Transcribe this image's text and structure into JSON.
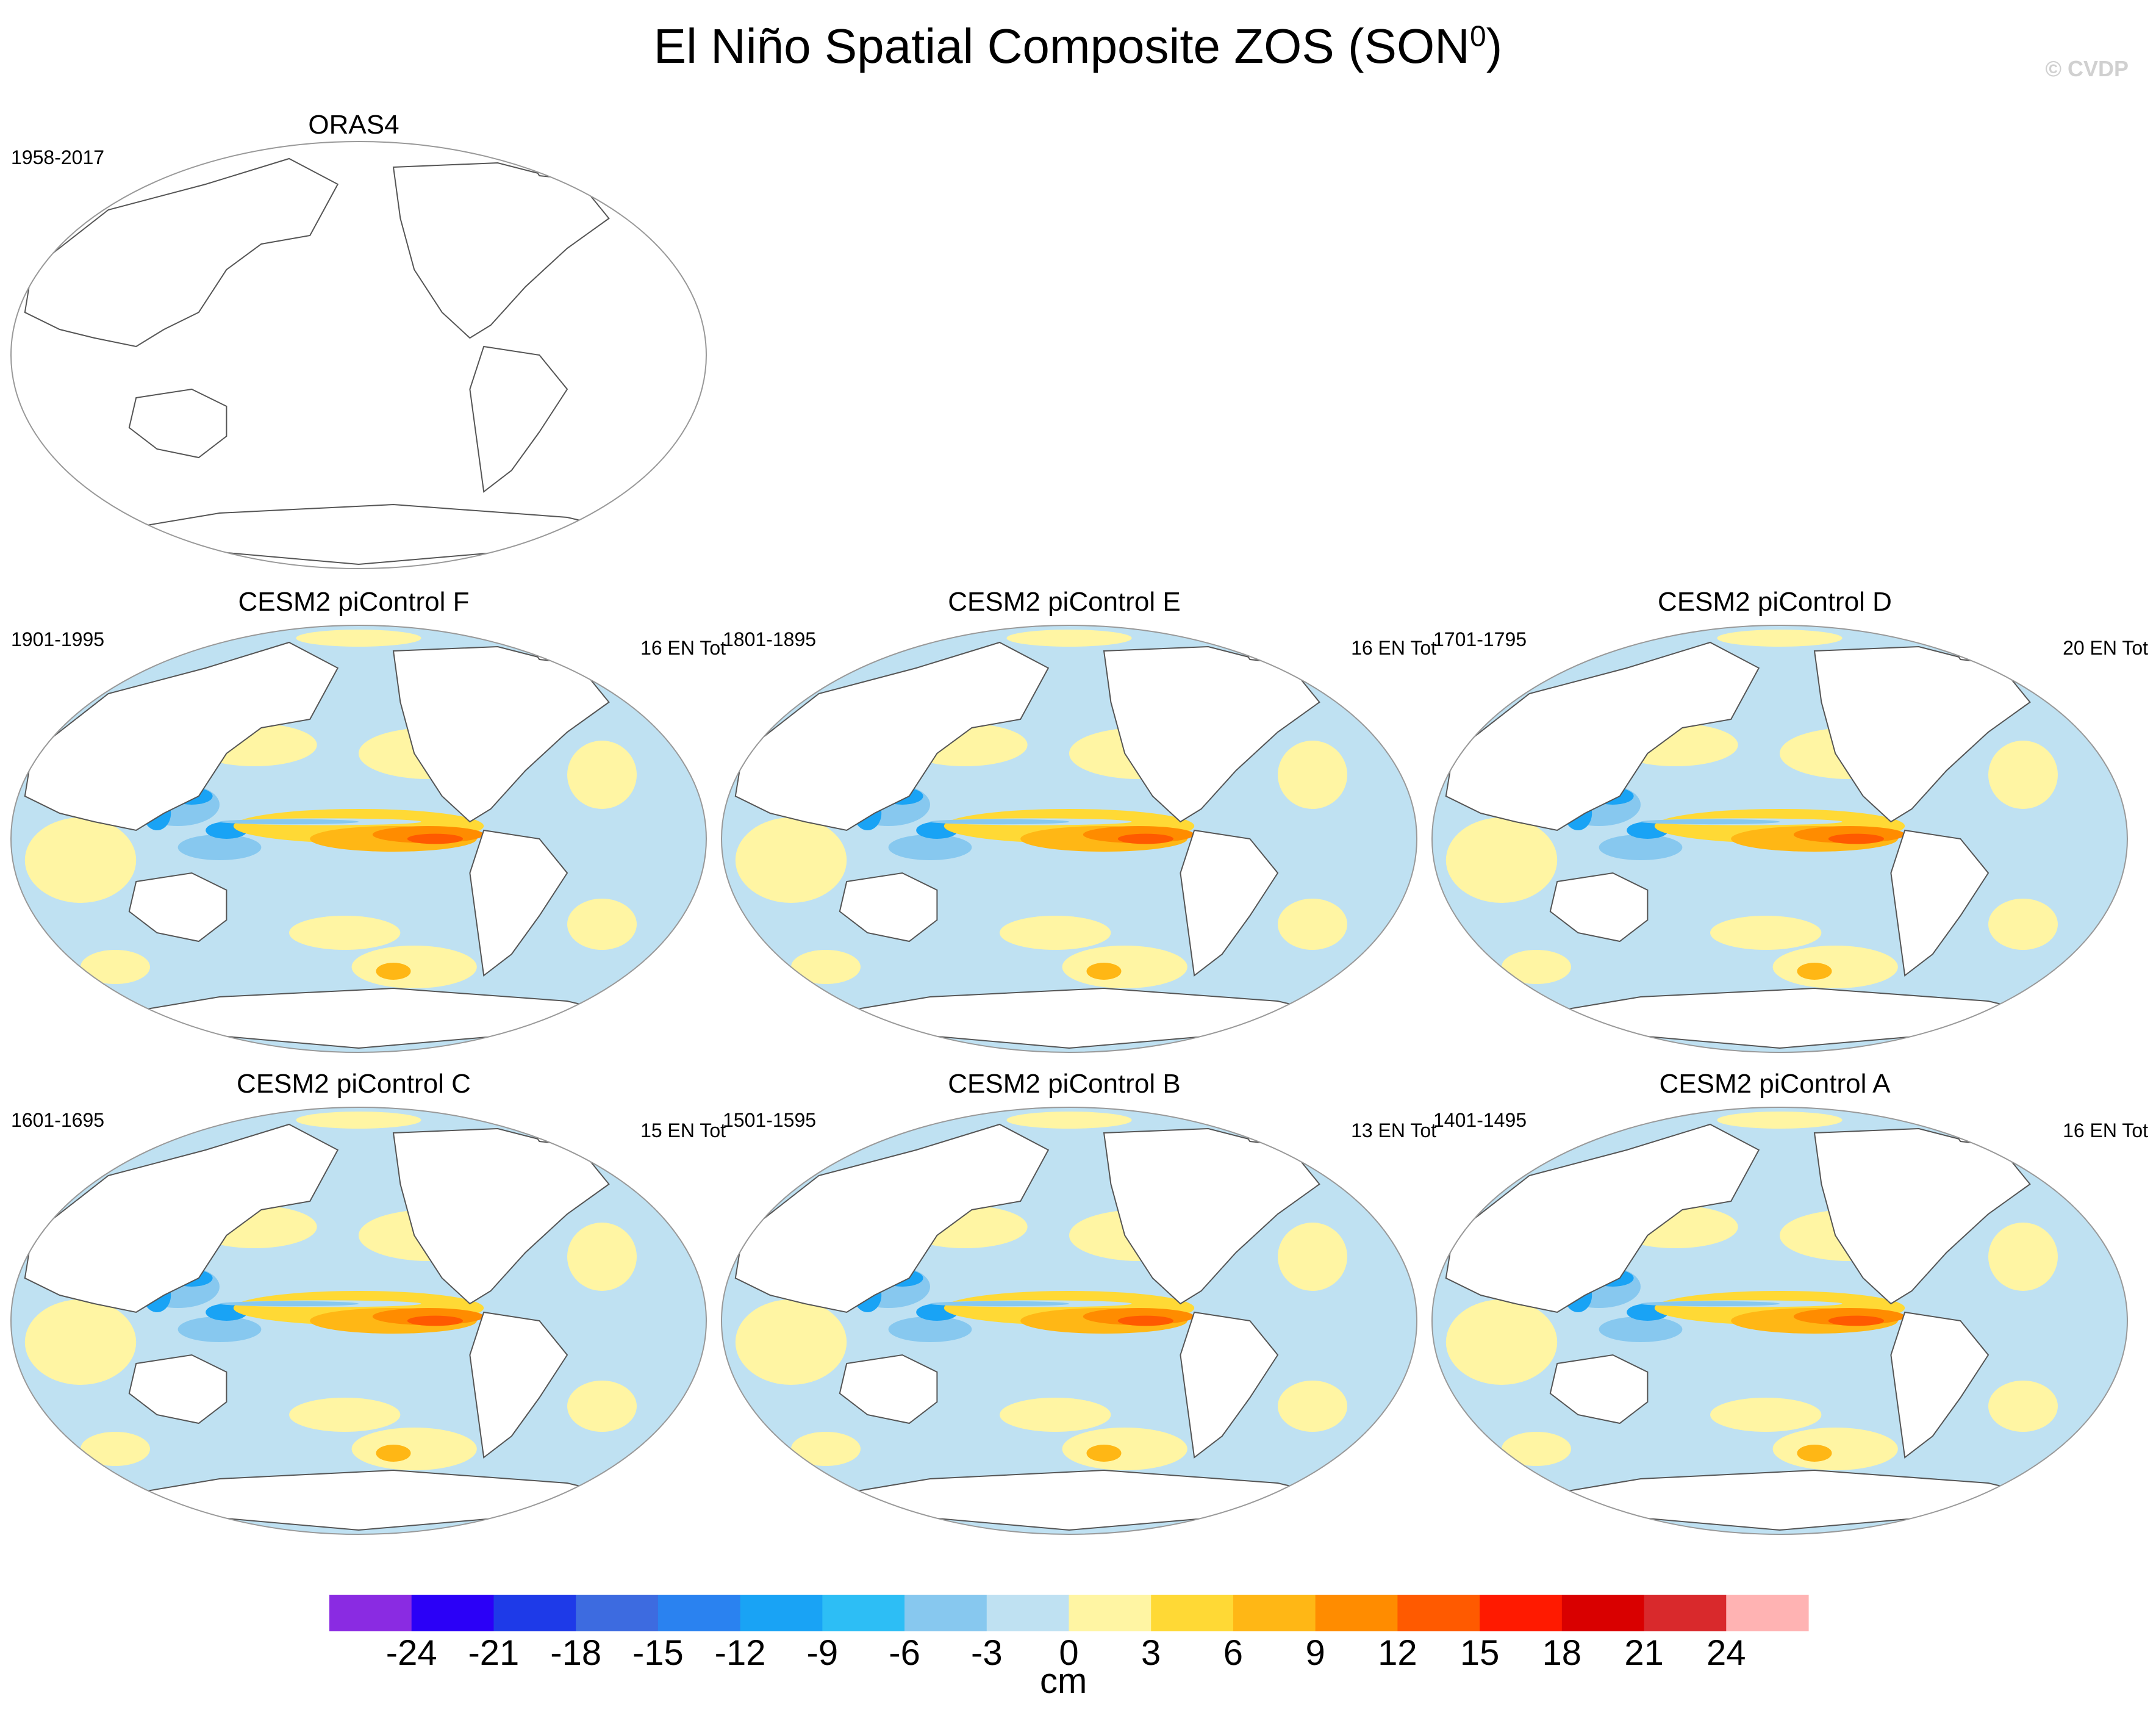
{
  "title": "El Niño Spatial Composite ZOS (SON",
  "title_superscript": "0",
  "watermark": "© CVDP",
  "chart_data": {
    "type": "heatmap",
    "title": "El Niño Spatial Composite ZOS (SON0)",
    "variable": "ZOS",
    "season": "SON0",
    "units": "cm",
    "colorbar": {
      "levels": [
        -24,
        -21,
        -18,
        -15,
        -12,
        -9,
        -6,
        -3,
        0,
        3,
        6,
        9,
        12,
        15,
        18,
        21,
        24
      ],
      "colors": [
        "#8a2be2",
        "#2b00f7",
        "#1e3ae8",
        "#3d6be0",
        "#2a82f0",
        "#19a3f5",
        "#2dbef5",
        "#87c8ef",
        "#bfe1f2",
        "#fff5a3",
        "#ffd935",
        "#ffb715",
        "#ff8c00",
        "#ff5a00",
        "#ff1a00",
        "#d90000",
        "#d9292c",
        "#ffb3b3"
      ],
      "unit_label": "cm"
    },
    "panels": [
      {
        "name": "ORAS4",
        "period": "1958-2017",
        "count": "",
        "has_data": false
      },
      {
        "name": "CESM2 piControl F",
        "period": "1901-1995",
        "count": "16 EN Tot",
        "has_data": true
      },
      {
        "name": "CESM2 piControl E",
        "period": "1801-1895",
        "count": "16 EN Tot",
        "has_data": true
      },
      {
        "name": "CESM2 piControl D",
        "period": "1701-1795",
        "count": "20 EN Tot",
        "has_data": true
      },
      {
        "name": "CESM2 piControl C",
        "period": "1601-1695",
        "count": "15 EN Tot",
        "has_data": true
      },
      {
        "name": "CESM2 piControl B",
        "period": "1501-1595",
        "count": "13 EN Tot",
        "has_data": true
      },
      {
        "name": "CESM2 piControl A",
        "period": "1401-1495",
        "count": "16 EN Tot",
        "has_data": true
      }
    ]
  }
}
